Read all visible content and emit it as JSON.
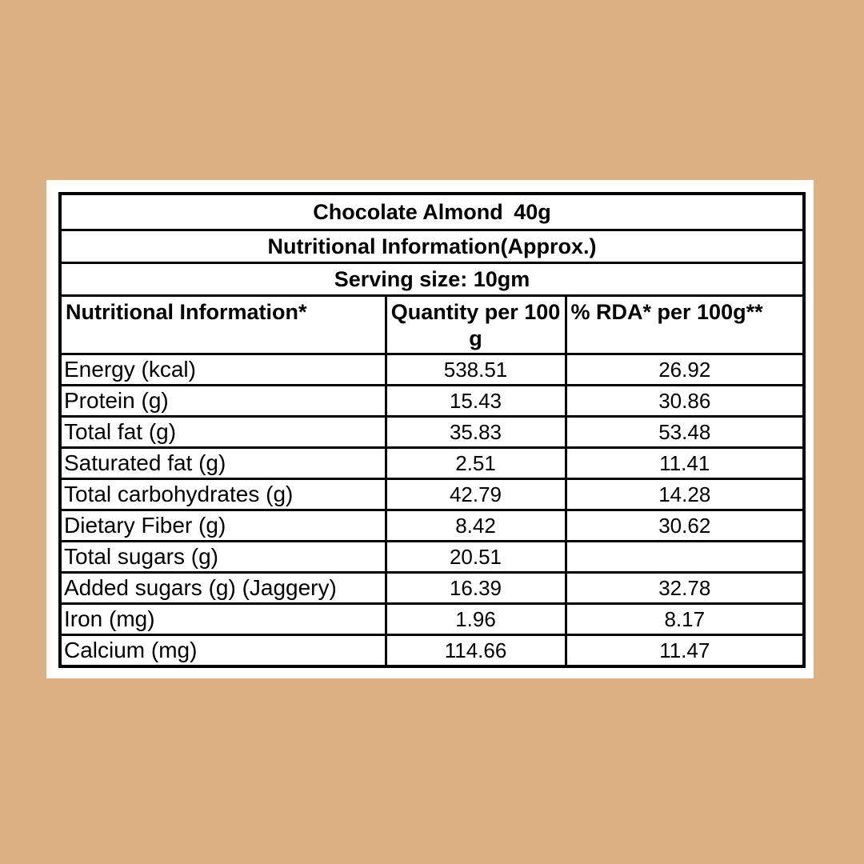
{
  "page": {
    "background_color": "#dcb183",
    "card_color": "#ffffff",
    "border_color": "#000000"
  },
  "label": {
    "titles": {
      "product": "Chocolate Almond 40g",
      "heading": "Nutritional Information(Approx.)",
      "serving": "Serving size: 10gm"
    },
    "columns": {
      "nutrient": "Nutritional Information*",
      "quantity": "Quantity per 100 g",
      "rda": "% RDA* per 100g**"
    },
    "rows": [
      {
        "label": "Energy (kcal)",
        "qty": "538.51",
        "rda": "26.92"
      },
      {
        "label": "Protein (g)",
        "qty": "15.43",
        "rda": "30.86"
      },
      {
        "label": "Total fat (g)",
        "qty": "35.83",
        "rda": "53.48"
      },
      {
        "label": "Saturated fat (g)",
        "qty": "2.51",
        "rda": "11.41"
      },
      {
        "label": "Total carbohydrates (g)",
        "qty": "42.79",
        "rda": "14.28"
      },
      {
        "label": "Dietary Fiber (g)",
        "qty": "8.42",
        "rda": "30.62"
      },
      {
        "label": "Total sugars (g)",
        "qty": "20.51",
        "rda": ""
      },
      {
        "label": "Added sugars (g) (Jaggery)",
        "qty": "16.39",
        "rda": "32.78"
      },
      {
        "label": "Iron (mg)",
        "qty": "1.96",
        "rda": "8.17"
      },
      {
        "label": "Calcium (mg)",
        "qty": "114.66",
        "rda": "11.47"
      }
    ]
  }
}
